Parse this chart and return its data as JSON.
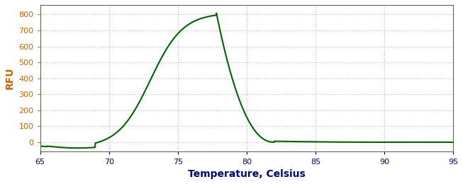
{
  "title": "",
  "xlabel": "Temperature, Celsius",
  "ylabel": "RFU",
  "xlim": [
    65,
    95
  ],
  "ylim": [
    -60,
    860
  ],
  "xticks": [
    65,
    70,
    75,
    80,
    85,
    90,
    95
  ],
  "yticks": [
    0,
    100,
    200,
    300,
    400,
    500,
    600,
    700,
    800
  ],
  "line_color": "#006400",
  "line_width": 1.5,
  "background_color": "#ffffff",
  "grid_color": "#7777cc",
  "grid_alpha": 0.5,
  "peak_temp": 77.8,
  "peak_rfu": 810,
  "xlabel_color": "#000080",
  "ylabel_color": "#cc6600",
  "tick_color_x": "#000080",
  "tick_color_y": "#cc6600",
  "xlabel_fontsize": 10,
  "ylabel_fontsize": 10,
  "tick_fontsize": 8,
  "figwidth": 6.53,
  "figheight": 2.6,
  "dpi": 100
}
